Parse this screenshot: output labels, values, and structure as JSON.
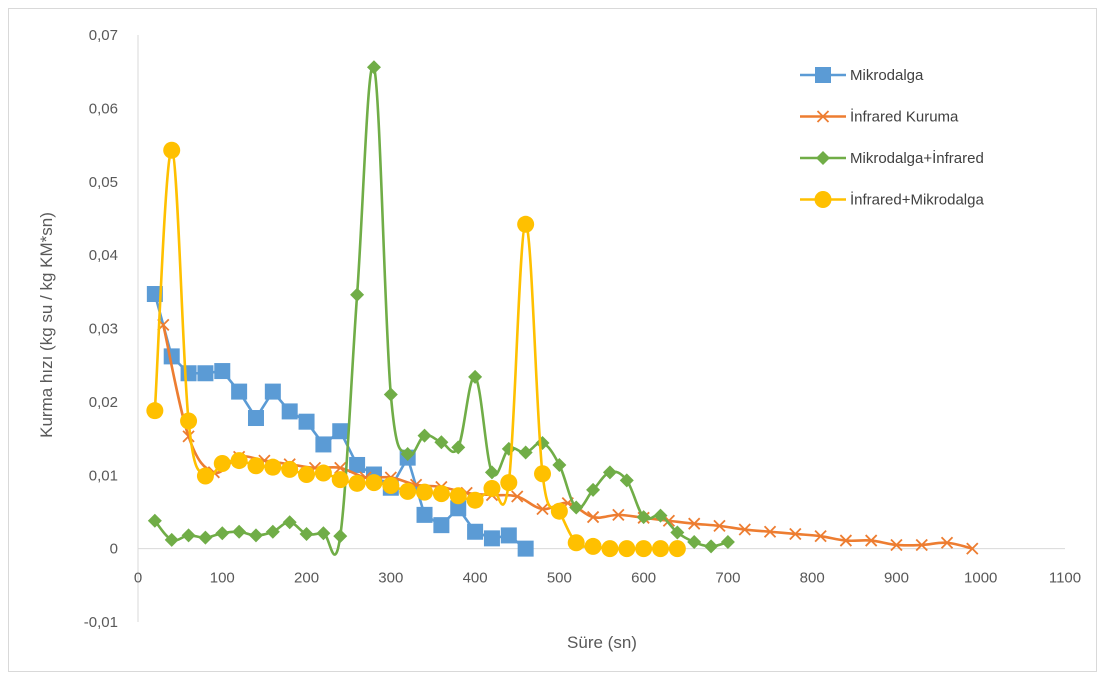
{
  "chart_data": {
    "type": "line",
    "title": "",
    "xlabel": "Süre (sn)",
    "ylabel": "Kurma hızı (kg su / kg KM*sn)",
    "xlim": [
      0,
      1100
    ],
    "ylim": [
      -0.01,
      0.07
    ],
    "x_ticks": [
      "0",
      "100",
      "200",
      "300",
      "400",
      "500",
      "600",
      "700",
      "800",
      "900",
      "1000",
      "1100"
    ],
    "y_ticks": [
      "-0,01",
      "0",
      "0,01",
      "0,02",
      "0,03",
      "0,04",
      "0,05",
      "0,06",
      "0,07"
    ],
    "grid": false,
    "legend_position": "top-right",
    "series": [
      {
        "name": "Mikrodalga",
        "color": "#5B9BD5",
        "marker": "square",
        "smooth": false,
        "points": [
          [
            20,
            0.0347
          ],
          [
            40,
            0.0262
          ],
          [
            60,
            0.0239
          ],
          [
            80,
            0.0239
          ],
          [
            100,
            0.0242
          ],
          [
            120,
            0.0214
          ],
          [
            140,
            0.0178
          ],
          [
            160,
            0.0214
          ],
          [
            180,
            0.0187
          ],
          [
            200,
            0.0173
          ],
          [
            220,
            0.0142
          ],
          [
            240,
            0.016
          ],
          [
            260,
            0.0114
          ],
          [
            280,
            0.0101
          ],
          [
            300,
            0.0083
          ],
          [
            320,
            0.0124
          ],
          [
            340,
            0.0046
          ],
          [
            360,
            0.0032
          ],
          [
            380,
            0.0055
          ],
          [
            400,
            0.0023
          ],
          [
            420,
            0.0014
          ],
          [
            440,
            0.0018
          ],
          [
            460,
            0.0
          ]
        ]
      },
      {
        "name": "İnfrared Kuruma",
        "color": "#ED7D31",
        "marker": "x",
        "smooth": true,
        "points": [
          [
            30,
            0.0305
          ],
          [
            60,
            0.0153
          ],
          [
            90,
            0.0104
          ],
          [
            120,
            0.0125
          ],
          [
            150,
            0.012
          ],
          [
            180,
            0.0115
          ],
          [
            210,
            0.011
          ],
          [
            240,
            0.011
          ],
          [
            270,
            0.0097
          ],
          [
            300,
            0.0097
          ],
          [
            330,
            0.0087
          ],
          [
            360,
            0.0084
          ],
          [
            390,
            0.0076
          ],
          [
            420,
            0.0073
          ],
          [
            450,
            0.0071
          ],
          [
            480,
            0.0054
          ],
          [
            510,
            0.0062
          ],
          [
            540,
            0.0043
          ],
          [
            570,
            0.0046
          ],
          [
            600,
            0.0042
          ],
          [
            630,
            0.0038
          ],
          [
            660,
            0.0034
          ],
          [
            690,
            0.0031
          ],
          [
            720,
            0.0026
          ],
          [
            750,
            0.0023
          ],
          [
            780,
            0.002
          ],
          [
            810,
            0.0017
          ],
          [
            840,
            0.0011
          ],
          [
            870,
            0.0011
          ],
          [
            900,
            0.0005
          ],
          [
            930,
            0.0005
          ],
          [
            960,
            0.0008
          ],
          [
            990,
            0.0
          ]
        ]
      },
      {
        "name": "Mikrodalga+İnfrared",
        "color": "#70AD47",
        "marker": "diamond",
        "smooth": true,
        "points": [
          [
            20,
            0.0038
          ],
          [
            40,
            0.0012
          ],
          [
            60,
            0.0018
          ],
          [
            80,
            0.0015
          ],
          [
            100,
            0.0021
          ],
          [
            120,
            0.0023
          ],
          [
            140,
            0.0018
          ],
          [
            160,
            0.0023
          ],
          [
            180,
            0.0036
          ],
          [
            200,
            0.002
          ],
          [
            220,
            0.0021
          ],
          [
            240,
            0.0017
          ],
          [
            260,
            0.0346
          ],
          [
            280,
            0.0656
          ],
          [
            300,
            0.021
          ],
          [
            320,
            0.0129
          ],
          [
            340,
            0.0154
          ],
          [
            360,
            0.0145
          ],
          [
            380,
            0.0138
          ],
          [
            400,
            0.0234
          ],
          [
            420,
            0.0104
          ],
          [
            440,
            0.0136
          ],
          [
            460,
            0.0131
          ],
          [
            480,
            0.0144
          ],
          [
            500,
            0.0114
          ],
          [
            520,
            0.0056
          ],
          [
            540,
            0.008
          ],
          [
            560,
            0.0104
          ],
          [
            580,
            0.0093
          ],
          [
            600,
            0.0043
          ],
          [
            620,
            0.0045
          ],
          [
            640,
            0.0022
          ],
          [
            660,
            0.0009
          ],
          [
            680,
            0.0003
          ],
          [
            700,
            0.0009
          ]
        ]
      },
      {
        "name": "İnfrared+Mikrodalga",
        "color": "#FFC000",
        "marker": "circle",
        "smooth": true,
        "points": [
          [
            20,
            0.0188
          ],
          [
            40,
            0.0543
          ],
          [
            60,
            0.0174
          ],
          [
            80,
            0.0099
          ],
          [
            100,
            0.0116
          ],
          [
            120,
            0.012
          ],
          [
            140,
            0.0113
          ],
          [
            160,
            0.0111
          ],
          [
            180,
            0.0108
          ],
          [
            200,
            0.0101
          ],
          [
            220,
            0.0103
          ],
          [
            240,
            0.0094
          ],
          [
            260,
            0.0089
          ],
          [
            280,
            0.009
          ],
          [
            300,
            0.0086
          ],
          [
            320,
            0.0078
          ],
          [
            340,
            0.0077
          ],
          [
            360,
            0.0075
          ],
          [
            380,
            0.0072
          ],
          [
            400,
            0.0066
          ],
          [
            420,
            0.0082
          ],
          [
            440,
            0.009
          ],
          [
            460,
            0.0442
          ],
          [
            480,
            0.0102
          ],
          [
            500,
            0.0051
          ],
          [
            520,
            0.0008
          ],
          [
            540,
            0.0003
          ],
          [
            560,
            0.0
          ],
          [
            580,
            0.0
          ],
          [
            600,
            0.0
          ],
          [
            620,
            0.0
          ],
          [
            640,
            0.0
          ]
        ]
      }
    ]
  }
}
